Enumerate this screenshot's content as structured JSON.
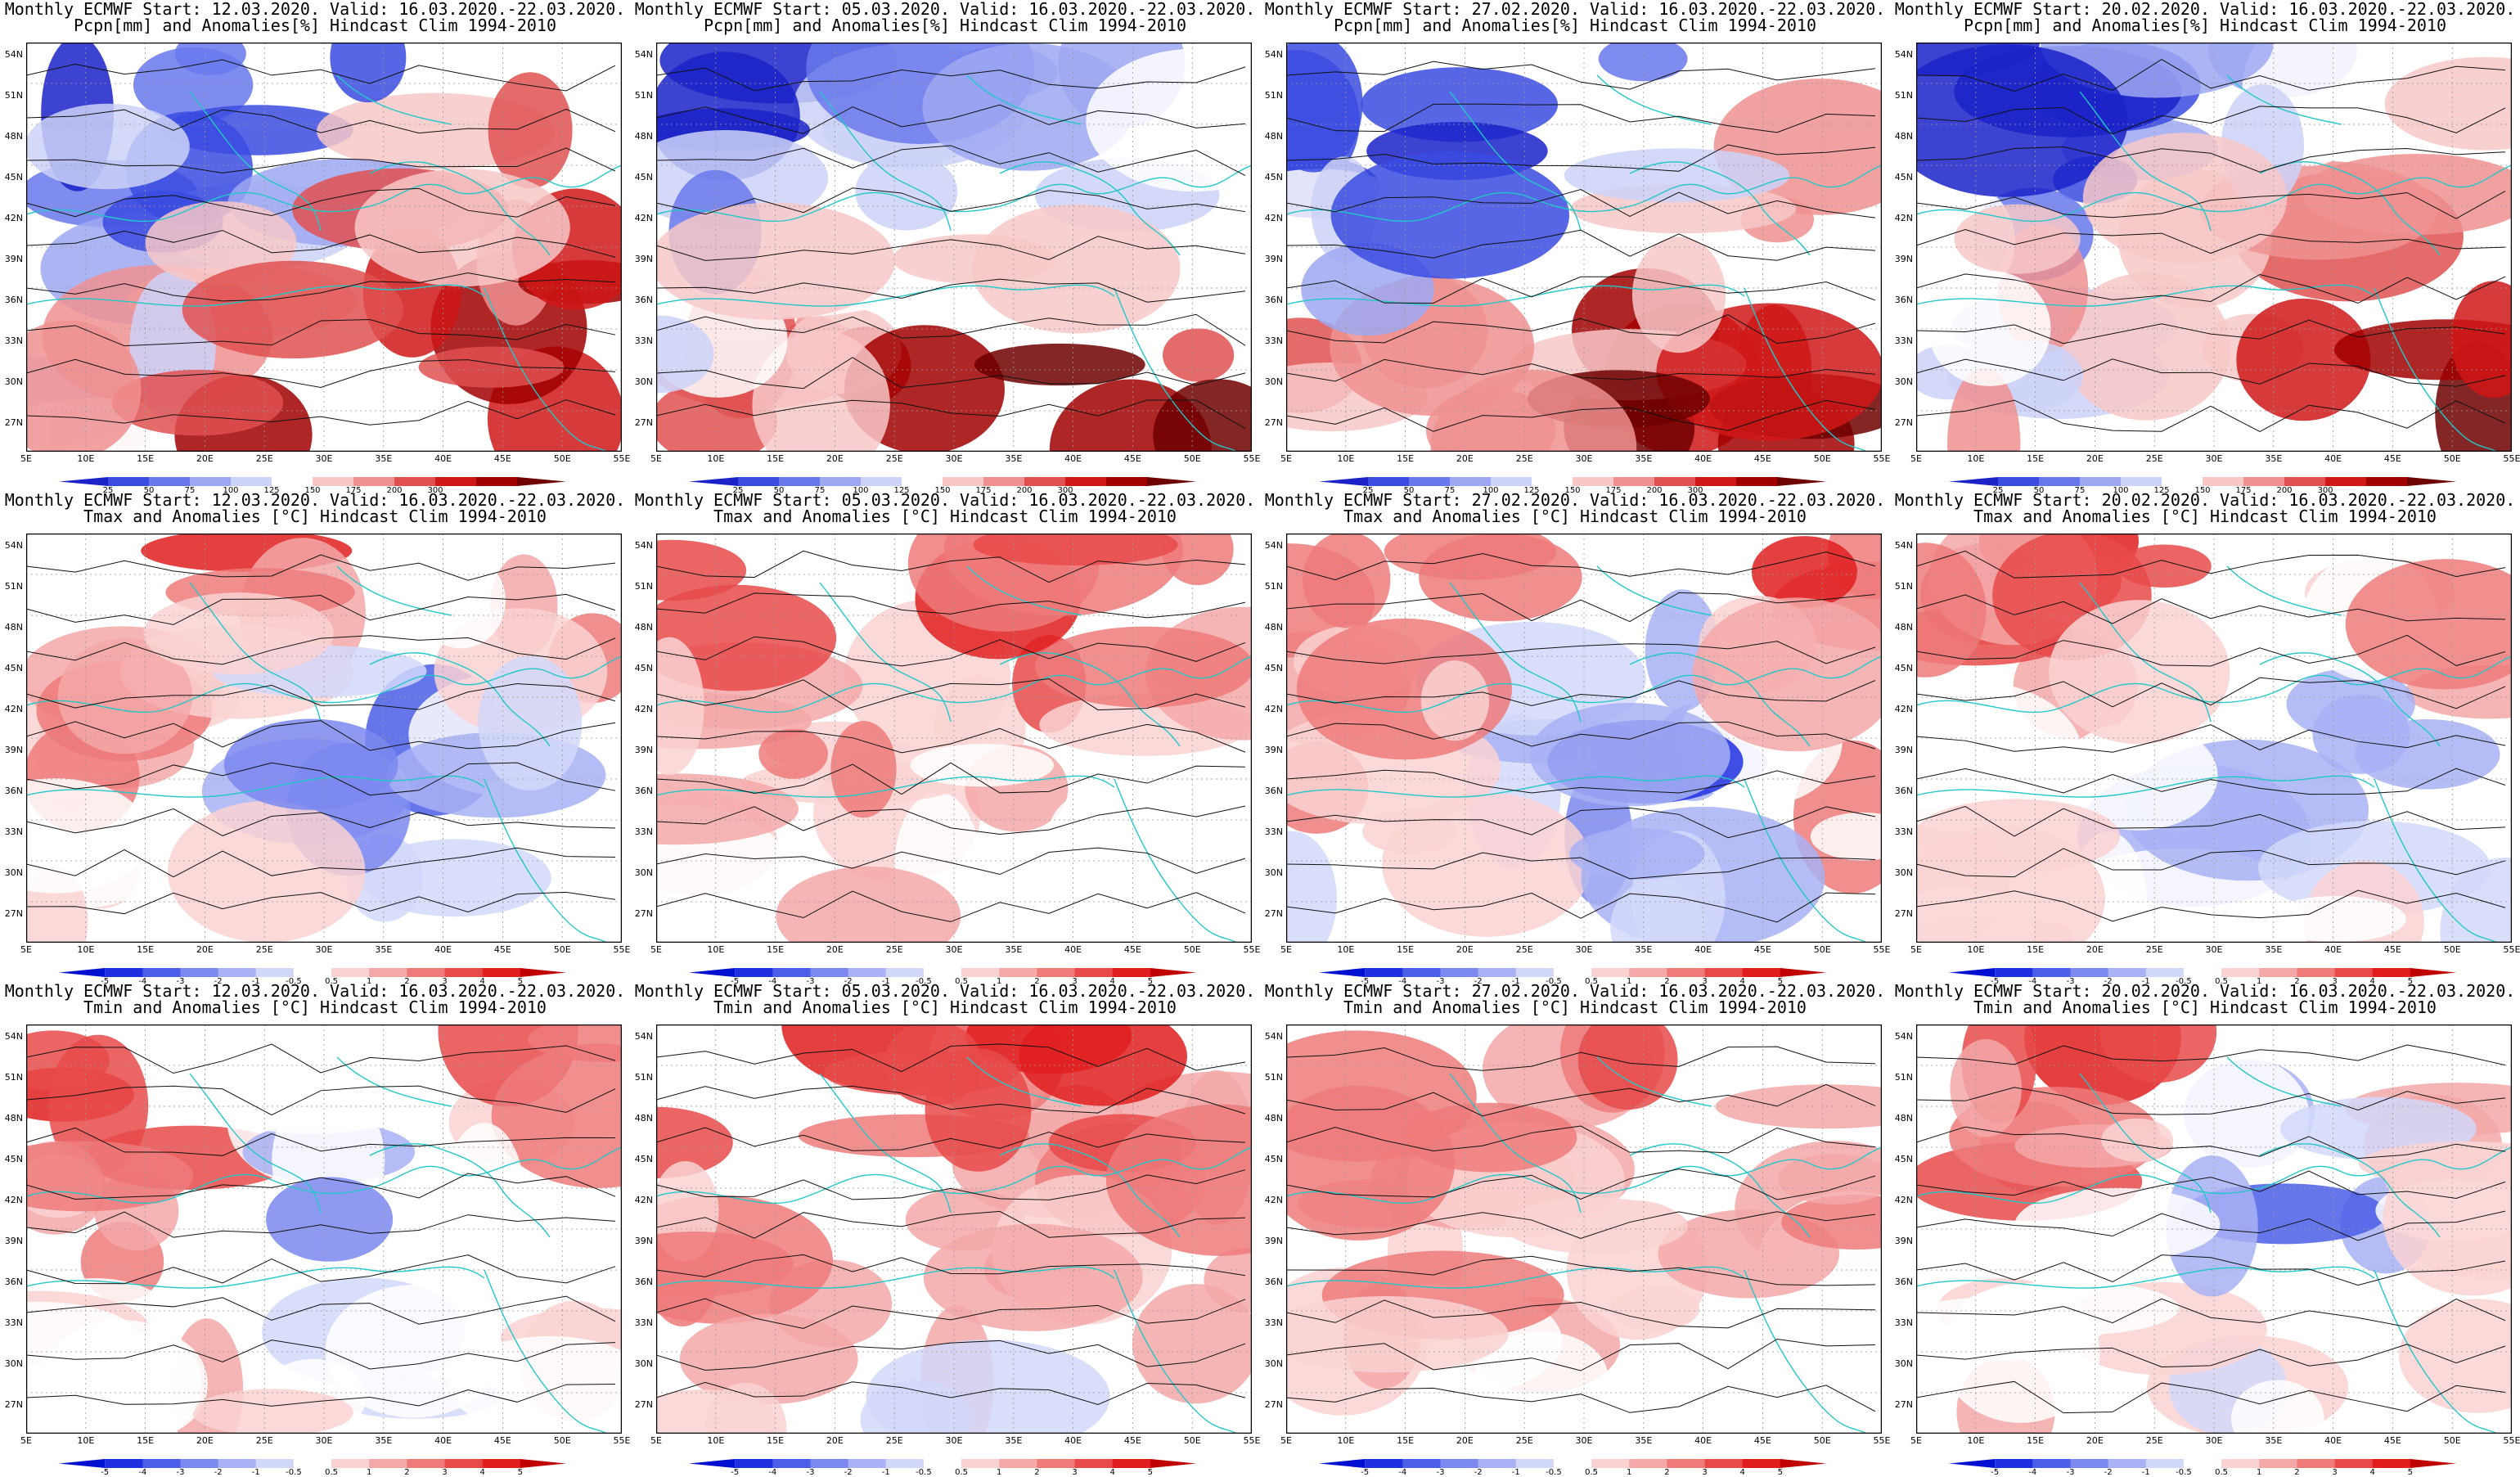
{
  "runs": [
    {
      "start": "Monthly ECMWF Start: 12.03.2020. Valid: 16.03.2020.-22.03.2020."
    },
    {
      "start": "Monthly ECMWF Start: 05.03.2020. Valid: 16.03.2020.-22.03.2020."
    },
    {
      "start": "Monthly ECMWF Start: 27.02.2020. Valid: 16.03.2020.-22.03.2020."
    },
    {
      "start": "Monthly ECMWF Start: 20.02.2020. Valid: 16.03.2020.-22.03.2020."
    }
  ],
  "variables": [
    {
      "subtitle": "Pcpn[mm] and Anomalies[%] Hindcast Clim 1994-2010",
      "legend_labels": [
        "25",
        "50",
        "75",
        "100",
        "125",
        "150",
        "175",
        "200",
        "300"
      ],
      "legend_colors": [
        "#1a22c8",
        "#3a4be0",
        "#6878ec",
        "#9ea8f2",
        "#cdd2f8",
        "#ffffff",
        "#f8c8c8",
        "#f09090",
        "#e05050",
        "#d01818",
        "#a00000",
        "#6e0000"
      ]
    },
    {
      "subtitle": "Tmax and Anomalies [°C] Hindcast Clim 1994-2010",
      "legend_labels": [
        "-5",
        "-4",
        "-3",
        "-2",
        "-1",
        "-0.5",
        "0.5",
        "1",
        "2",
        "3",
        "4",
        "5"
      ],
      "legend_colors": [
        "#0010d0",
        "#1e30e0",
        "#4a5ee8",
        "#7a88f0",
        "#a8b2f4",
        "#d2d8fa",
        "#ffffff",
        "#fad2d2",
        "#f5a8a8",
        "#ef7a7a",
        "#e84a4a",
        "#e01e1e",
        "#c00000"
      ]
    },
    {
      "subtitle": "Tmin and Anomalies [°C] Hindcast Clim 1994-2010",
      "legend_labels": [
        "-5",
        "-4",
        "-3",
        "-2",
        "-1",
        "-0.5",
        "0.5",
        "1",
        "2",
        "3",
        "4",
        "5"
      ],
      "legend_colors": [
        "#0010d0",
        "#1e30e0",
        "#4a5ee8",
        "#7a88f0",
        "#a8b2f4",
        "#d2d8fa",
        "#ffffff",
        "#fad2d2",
        "#f5a8a8",
        "#ef7a7a",
        "#e84a4a",
        "#e01e1e",
        "#c00000"
      ]
    }
  ],
  "axes": {
    "lat_labels": [
      "54N",
      "51N",
      "48N",
      "45N",
      "42N",
      "39N",
      "36N",
      "33N",
      "30N",
      "27N"
    ],
    "lon_labels": [
      "5E",
      "10E",
      "15E",
      "20E",
      "25E",
      "30E",
      "35E",
      "40E",
      "45E",
      "50E",
      "55E"
    ]
  }
}
